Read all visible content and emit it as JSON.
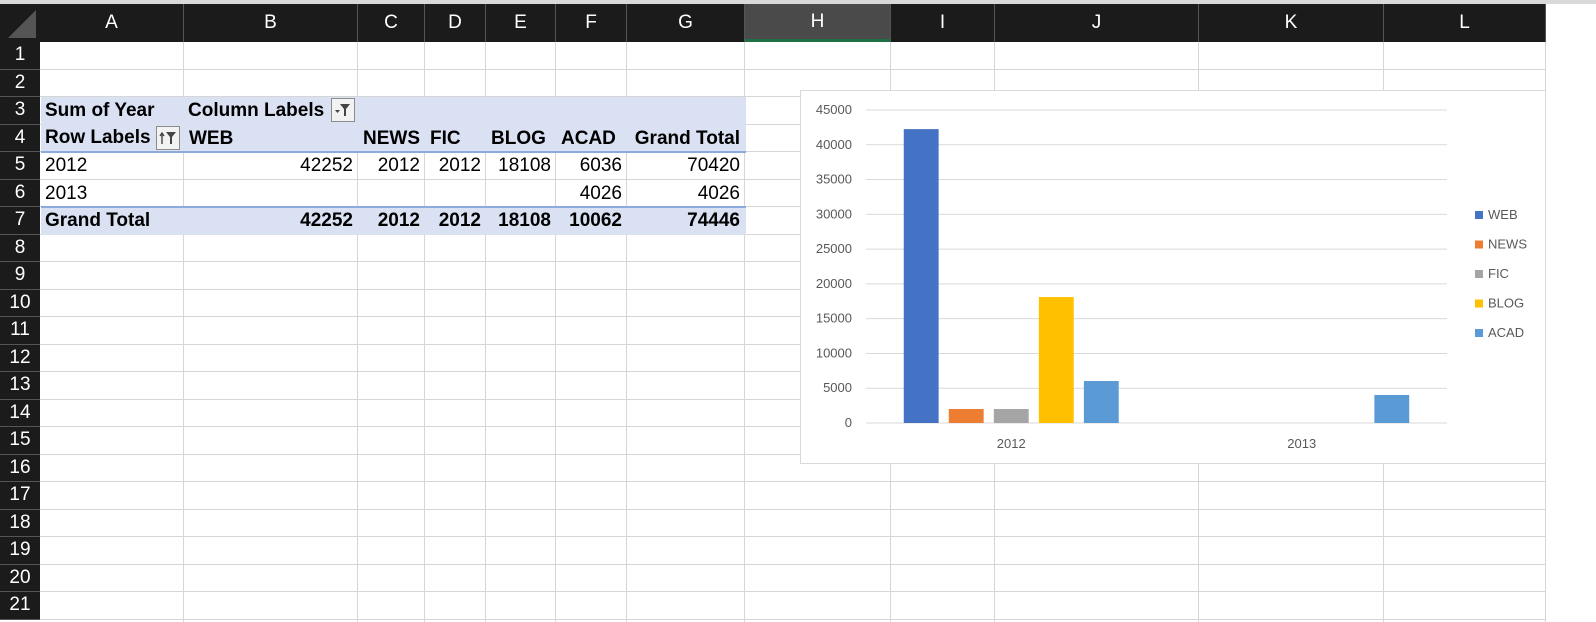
{
  "columns": [
    "A",
    "B",
    "C",
    "D",
    "E",
    "F",
    "G",
    "H",
    "I",
    "J",
    "K",
    "L"
  ],
  "selected_column": "H",
  "rows": [
    "1",
    "2",
    "3",
    "4",
    "5",
    "6",
    "7",
    "8",
    "9",
    "10",
    "11",
    "12",
    "13",
    "14",
    "15",
    "16",
    "17",
    "18",
    "19",
    "20",
    "21"
  ],
  "pivot": {
    "corner_label": "Sum of Year",
    "column_labels": "Column Labels",
    "row_labels": "Row Labels",
    "headers": [
      "WEB",
      "NEWS",
      "FIC",
      "BLOG",
      "ACAD",
      "Grand Total"
    ],
    "data_rows": [
      {
        "label": "2012",
        "values": [
          "42252",
          "2012",
          "2012",
          "18108",
          "6036",
          "70420"
        ]
      },
      {
        "label": "2013",
        "values": [
          "",
          "",
          "",
          "",
          "4026",
          "4026"
        ]
      }
    ],
    "total_row": {
      "label": "Grand Total",
      "values": [
        "42252",
        "2012",
        "2012",
        "18108",
        "10062",
        "74446"
      ]
    }
  },
  "chart_data": {
    "type": "bar",
    "title": "",
    "xlabel": "",
    "ylabel": "",
    "categories": [
      "2012",
      "2013"
    ],
    "series": [
      {
        "name": "WEB",
        "color": "#4472c4",
        "values": [
          42252,
          null
        ]
      },
      {
        "name": "NEWS",
        "color": "#ed7d31",
        "values": [
          2012,
          null
        ]
      },
      {
        "name": "FIC",
        "color": "#a5a5a5",
        "values": [
          2012,
          null
        ]
      },
      {
        "name": "BLOG",
        "color": "#ffc000",
        "values": [
          18108,
          null
        ]
      },
      {
        "name": "ACAD",
        "color": "#5b9bd5",
        "values": [
          6036,
          4026
        ]
      }
    ],
    "ylim": [
      0,
      45000
    ],
    "yticks": [
      0,
      5000,
      10000,
      15000,
      20000,
      25000,
      30000,
      35000,
      40000,
      45000
    ],
    "grid": true,
    "legend_position": "right"
  }
}
